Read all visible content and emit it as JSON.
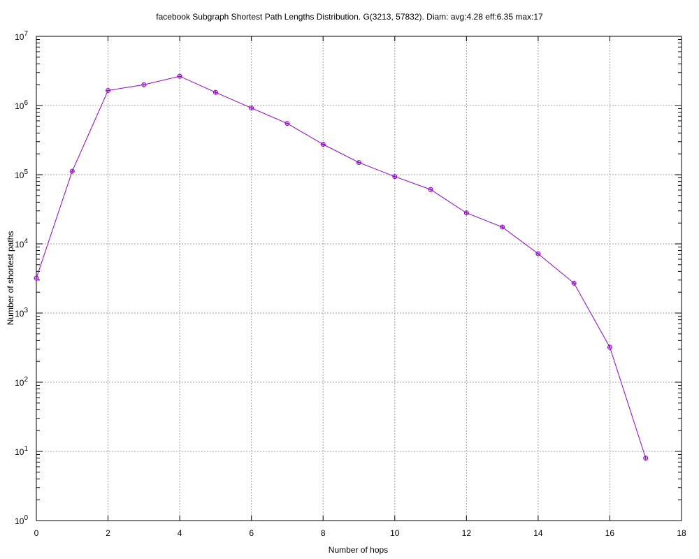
{
  "chart_data": {
    "type": "line",
    "title": "facebook Subgraph Shortest Path Lengths Distribution. G(3213, 57832). Diam: avg:4.28  eff:6.35  max:17",
    "xlabel": "Number of hops",
    "ylabel": "Number of shortest paths",
    "xlim": [
      0,
      18
    ],
    "ylim": [
      1,
      10000000
    ],
    "yscale": "log",
    "grid": true,
    "x_ticks": [
      "0",
      "2",
      "4",
      "6",
      "8",
      "10",
      "12",
      "14",
      "16",
      "18"
    ],
    "y_ticks": [
      {
        "base": "10",
        "exp": "0"
      },
      {
        "base": "10",
        "exp": "1"
      },
      {
        "base": "10",
        "exp": "2"
      },
      {
        "base": "10",
        "exp": "3"
      },
      {
        "base": "10",
        "exp": "4"
      },
      {
        "base": "10",
        "exp": "5"
      },
      {
        "base": "10",
        "exp": "6"
      },
      {
        "base": "10",
        "exp": "7"
      }
    ],
    "series": [
      {
        "color": "#9400d3",
        "marker": "circle-plus",
        "x": [
          0,
          1,
          2,
          3,
          4,
          5,
          6,
          7,
          8,
          9,
          10,
          11,
          12,
          13,
          14,
          15,
          16,
          17
        ],
        "y": [
          3200,
          112000,
          1650000,
          2000000,
          2650000,
          1550000,
          920000,
          550000,
          275000,
          150000,
          94000,
          61000,
          28000,
          17500,
          7200,
          2700,
          320,
          8
        ]
      }
    ]
  }
}
